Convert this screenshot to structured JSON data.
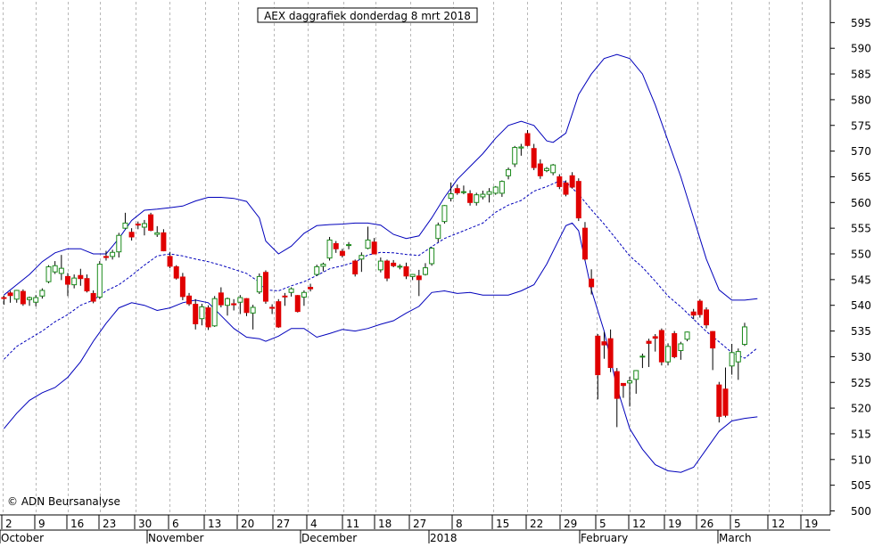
{
  "chart_data": {
    "type": "candlestick",
    "title": "AEX daggrafiek donderdag 8 mrt 2018",
    "credit": "© ADN Beursanalyse",
    "ylim": [
      500,
      598
    ],
    "y_ticks": [
      500,
      505,
      510,
      515,
      520,
      525,
      530,
      535,
      540,
      545,
      550,
      555,
      560,
      565,
      570,
      575,
      580,
      585,
      590,
      595
    ],
    "grid": "vertical dashed",
    "x_ticks": [
      "2",
      "9",
      "16",
      "23",
      "30",
      "6",
      "13",
      "20",
      "27",
      "4",
      "11",
      "18",
      "27",
      "8",
      "15",
      "22",
      "29",
      "5",
      "12",
      "19",
      "26",
      "5",
      "12",
      "19"
    ],
    "months": [
      "October",
      "November",
      "December",
      "2018",
      "February",
      "March"
    ],
    "colors": {
      "up": "#1a8a1a",
      "down": "#e00000",
      "band": "#0000bb",
      "average": "#0000bb"
    },
    "candles": [
      [
        541.5,
        541.9,
        540.1,
        541.4
      ],
      [
        542.4,
        542.8,
        540.5,
        541.9
      ],
      [
        541.2,
        543.0,
        540.5,
        542.9
      ],
      [
        542.7,
        543.1,
        539.9,
        540.3
      ],
      [
        541.1,
        541.7,
        539.9,
        541.5
      ],
      [
        540.6,
        542.0,
        539.8,
        541.5
      ],
      [
        541.8,
        543.3,
        541.3,
        542.9
      ],
      [
        544.6,
        547.8,
        544.3,
        547.5
      ],
      [
        546.5,
        548.6,
        546.1,
        547.7
      ],
      [
        546.2,
        549.8,
        544.9,
        547.2
      ],
      [
        545.6,
        546.3,
        541.8,
        544.1
      ],
      [
        544.0,
        546.0,
        543.3,
        545.3
      ],
      [
        545.8,
        547.1,
        543.8,
        545.2
      ],
      [
        545.2,
        546.0,
        542.5,
        542.8
      ],
      [
        542.3,
        542.9,
        540.4,
        540.8
      ],
      [
        541.6,
        548.6,
        541.2,
        548.0
      ],
      [
        549.5,
        550.6,
        548.7,
        549.3
      ],
      [
        549.5,
        550.8,
        548.9,
        550.3
      ],
      [
        550.4,
        554.1,
        549.3,
        553.6
      ],
      [
        555.0,
        558.0,
        554.8,
        556.0
      ],
      [
        554.2,
        555.0,
        552.6,
        553.3
      ],
      [
        555.8,
        556.3,
        554.8,
        555.6
      ],
      [
        555.2,
        556.6,
        553.6,
        555.9
      ],
      [
        557.6,
        558.0,
        554.4,
        554.6
      ],
      [
        553.8,
        555.4,
        553.3,
        554.1
      ],
      [
        554.1,
        554.8,
        550.5,
        550.6
      ],
      [
        549.5,
        550.4,
        547.2,
        547.6
      ],
      [
        547.5,
        547.8,
        545.0,
        545.3
      ],
      [
        545.5,
        546.3,
        541.0,
        541.7
      ],
      [
        541.8,
        542.4,
        539.9,
        540.3
      ],
      [
        540.2,
        541.2,
        535.3,
        536.4
      ],
      [
        537.4,
        540.3,
        536.1,
        539.7
      ],
      [
        539.5,
        540.0,
        535.2,
        535.8
      ],
      [
        536.0,
        541.8,
        535.8,
        541.3
      ],
      [
        542.4,
        543.5,
        539.6,
        540.1
      ],
      [
        540.0,
        541.5,
        538.0,
        541.3
      ],
      [
        540.3,
        541.2,
        539.0,
        540.1
      ],
      [
        540.6,
        542.0,
        538.3,
        541.5
      ],
      [
        541.3,
        541.4,
        537.9,
        538.6
      ],
      [
        538.5,
        540.1,
        535.3,
        539.6
      ],
      [
        542.6,
        546.2,
        542.2,
        545.6
      ],
      [
        546.4,
        546.8,
        540.3,
        540.8
      ],
      [
        539.6,
        540.2,
        538.3,
        539.5
      ],
      [
        540.7,
        541.2,
        535.6,
        535.8
      ],
      [
        541.8,
        542.4,
        539.9,
        541.7
      ],
      [
        542.5,
        543.5,
        541.7,
        543.2
      ],
      [
        541.9,
        542.0,
        538.6,
        538.8
      ],
      [
        541.6,
        542.9,
        539.9,
        542.5
      ],
      [
        543.5,
        544.2,
        542.7,
        543.2
      ],
      [
        546.0,
        547.9,
        545.7,
        547.5
      ],
      [
        547.6,
        548.3,
        546.6,
        548.0
      ],
      [
        549.2,
        553.3,
        548.7,
        552.7
      ],
      [
        552.0,
        552.5,
        550.2,
        551.0
      ],
      [
        550.5,
        551.0,
        549.3,
        549.7
      ],
      [
        551.7,
        552.3,
        550.9,
        551.8
      ],
      [
        548.6,
        548.9,
        545.6,
        546.1
      ],
      [
        549.0,
        550.3,
        546.5,
        549.7
      ],
      [
        551.1,
        555.3,
        550.9,
        552.7
      ],
      [
        552.3,
        553.1,
        549.9,
        550.0
      ],
      [
        546.9,
        549.3,
        546.4,
        548.6
      ],
      [
        548.6,
        548.9,
        544.7,
        545.3
      ],
      [
        548.2,
        548.8,
        547.4,
        547.7
      ],
      [
        547.5,
        548.0,
        547.0,
        547.6
      ],
      [
        547.5,
        548.3,
        545.1,
        545.7
      ],
      [
        545.6,
        546.1,
        544.9,
        546.0
      ],
      [
        545.7,
        546.9,
        541.8,
        545.0
      ],
      [
        546.0,
        548.2,
        545.8,
        547.3
      ],
      [
        548.1,
        551.3,
        547.7,
        551.1
      ],
      [
        553.0,
        556.1,
        552.3,
        555.6
      ],
      [
        556.3,
        559.5,
        555.9,
        559.4
      ],
      [
        560.8,
        563.9,
        560.2,
        561.7
      ],
      [
        562.7,
        563.5,
        561.5,
        561.9
      ],
      [
        562.0,
        563.3,
        561.6,
        562.1
      ],
      [
        561.7,
        562.4,
        559.4,
        560.0
      ],
      [
        560.0,
        561.9,
        559.4,
        561.5
      ],
      [
        561.1,
        562.3,
        560.6,
        561.6
      ],
      [
        561.6,
        562.8,
        560.0,
        562.1
      ],
      [
        561.8,
        563.2,
        561.5,
        563.0
      ],
      [
        561.8,
        564.3,
        561.1,
        564.1
      ],
      [
        565.2,
        566.8,
        564.5,
        566.4
      ],
      [
        567.5,
        571.0,
        566.9,
        570.7
      ],
      [
        570.6,
        571.4,
        569.1,
        570.8
      ],
      [
        573.4,
        574.1,
        570.9,
        571.1
      ],
      [
        570.5,
        571.4,
        566.3,
        566.8
      ],
      [
        567.5,
        568.4,
        564.6,
        565.2
      ],
      [
        566.2,
        566.9,
        565.9,
        566.6
      ],
      [
        565.8,
        567.5,
        565.3,
        567.3
      ],
      [
        565.0,
        565.5,
        562.6,
        563.1
      ],
      [
        563.8,
        564.3,
        561.2,
        561.6
      ],
      [
        565.2,
        565.9,
        562.7,
        563.0
      ],
      [
        564.1,
        564.7,
        556.4,
        557.0
      ],
      [
        555.0,
        556.2,
        548.7,
        549.0
      ],
      [
        545.1,
        547.0,
        542.1,
        543.6
      ],
      [
        534.0,
        534.4,
        521.7,
        526.5
      ],
      [
        532.9,
        534.8,
        529.6,
        532.3
      ],
      [
        533.5,
        535.3,
        527.0,
        527.9
      ],
      [
        527.1,
        527.8,
        516.3,
        521.9
      ],
      [
        524.8,
        524.7,
        522.0,
        524.4
      ],
      [
        524.9,
        526.1,
        520.3,
        525.3
      ],
      [
        525.6,
        527.4,
        522.8,
        527.3
      ],
      [
        530.0,
        530.6,
        527.8,
        530.1
      ],
      [
        533.0,
        533.5,
        528.0,
        532.6
      ],
      [
        533.9,
        534.4,
        531.0,
        533.6
      ],
      [
        535.1,
        535.5,
        528.3,
        529.0
      ],
      [
        529.0,
        532.6,
        528.3,
        532.0
      ],
      [
        534.5,
        535.0,
        529.7,
        530.0
      ],
      [
        531.2,
        532.9,
        529.4,
        532.5
      ],
      [
        533.4,
        534.9,
        533.0,
        534.8
      ],
      [
        538.7,
        539.3,
        537.3,
        538.1
      ],
      [
        540.8,
        541.2,
        537.6,
        538.2
      ],
      [
        539.1,
        539.6,
        535.5,
        536.2
      ],
      [
        534.9,
        535.0,
        527.4,
        531.7
      ],
      [
        524.5,
        525.1,
        517.2,
        518.4
      ],
      [
        523.7,
        527.9,
        518.2,
        518.6
      ],
      [
        528.2,
        532.5,
        526.5,
        530.8
      ],
      [
        529.0,
        531.6,
        525.5,
        531.0
      ],
      [
        532.4,
        536.6,
        532.1,
        535.8
      ]
    ],
    "sma": [
      [
        0,
        529.5
      ],
      [
        2,
        532.0
      ],
      [
        4,
        533.5
      ],
      [
        6,
        535.0
      ],
      [
        8,
        536.8
      ],
      [
        10,
        538.2
      ],
      [
        12,
        540.0
      ],
      [
        14,
        541.0
      ],
      [
        16,
        542.8
      ],
      [
        18,
        544.0
      ],
      [
        20,
        545.8
      ],
      [
        22,
        547.8
      ],
      [
        24,
        549.6
      ],
      [
        26,
        550.0
      ],
      [
        28,
        549.6
      ],
      [
        30,
        549.0
      ],
      [
        32,
        548.5
      ],
      [
        34,
        547.8
      ],
      [
        36,
        547.0
      ],
      [
        38,
        546.2
      ],
      [
        40,
        544.5
      ],
      [
        41,
        543.0
      ],
      [
        43,
        542.8
      ],
      [
        45,
        543.8
      ],
      [
        47,
        544.6
      ],
      [
        49,
        545.8
      ],
      [
        51,
        547.1
      ],
      [
        53,
        547.7
      ],
      [
        55,
        548.4
      ],
      [
        57,
        549.8
      ],
      [
        59,
        550.3
      ],
      [
        61,
        550.2
      ],
      [
        63,
        549.9
      ],
      [
        65,
        549.7
      ],
      [
        67,
        551.4
      ],
      [
        69,
        553.0
      ],
      [
        71,
        554.0
      ],
      [
        73,
        555.0
      ],
      [
        75,
        556.0
      ],
      [
        77,
        558.1
      ],
      [
        79,
        559.5
      ],
      [
        81,
        560.4
      ],
      [
        83,
        562.2
      ],
      [
        85,
        563.1
      ],
      [
        87,
        564.2
      ],
      [
        88,
        564.0
      ],
      [
        90,
        561.6
      ],
      [
        92,
        558.6
      ],
      [
        94,
        555.8
      ],
      [
        96,
        552.7
      ],
      [
        98,
        549.6
      ],
      [
        100,
        547.4
      ],
      [
        102,
        544.7
      ],
      [
        104,
        541.8
      ],
      [
        106,
        539.7
      ],
      [
        108,
        537.3
      ],
      [
        110,
        534.9
      ],
      [
        112,
        532.9
      ],
      [
        114,
        530.8
      ],
      [
        116,
        529.7
      ],
      [
        118,
        531.7
      ]
    ],
    "upper_band": [
      [
        0,
        542.0
      ],
      [
        2,
        544.0
      ],
      [
        4,
        546.0
      ],
      [
        6,
        548.5
      ],
      [
        8,
        550.2
      ],
      [
        10,
        551.0
      ],
      [
        12,
        551.0
      ],
      [
        14,
        550.0
      ],
      [
        16,
        550.0
      ],
      [
        18,
        553.0
      ],
      [
        20,
        556.5
      ],
      [
        22,
        558.5
      ],
      [
        24,
        558.7
      ],
      [
        26,
        559.0
      ],
      [
        28,
        559.3
      ],
      [
        30,
        560.3
      ],
      [
        32,
        561.0
      ],
      [
        34,
        561.0
      ],
      [
        36,
        560.8
      ],
      [
        38,
        560.2
      ],
      [
        40,
        557.0
      ],
      [
        41,
        552.5
      ],
      [
        43,
        550.0
      ],
      [
        45,
        551.5
      ],
      [
        47,
        554.0
      ],
      [
        49,
        555.5
      ],
      [
        51,
        555.7
      ],
      [
        53,
        555.8
      ],
      [
        55,
        556.0
      ],
      [
        57,
        556.0
      ],
      [
        59,
        555.6
      ],
      [
        61,
        553.8
      ],
      [
        63,
        553.0
      ],
      [
        65,
        553.5
      ],
      [
        67,
        557.0
      ],
      [
        69,
        561.0
      ],
      [
        71,
        564.5
      ],
      [
        73,
        567.0
      ],
      [
        75,
        569.5
      ],
      [
        77,
        572.5
      ],
      [
        79,
        575.0
      ],
      [
        81,
        575.8
      ],
      [
        83,
        575.0
      ],
      [
        85,
        572.0
      ],
      [
        86,
        571.7
      ],
      [
        88,
        573.5
      ],
      [
        90,
        581.0
      ],
      [
        92,
        585.0
      ],
      [
        94,
        588.0
      ],
      [
        96,
        588.8
      ],
      [
        98,
        588.0
      ],
      [
        100,
        585.0
      ],
      [
        102,
        579.0
      ],
      [
        104,
        572.0
      ],
      [
        106,
        565.0
      ],
      [
        108,
        557.0
      ],
      [
        110,
        549.0
      ],
      [
        112,
        543.0
      ],
      [
        114,
        541.0
      ],
      [
        116,
        541.0
      ],
      [
        118,
        541.3
      ]
    ],
    "lower_band": [
      [
        0,
        516.0
      ],
      [
        2,
        519.0
      ],
      [
        4,
        521.5
      ],
      [
        6,
        523.0
      ],
      [
        8,
        524.0
      ],
      [
        10,
        526.0
      ],
      [
        12,
        529.0
      ],
      [
        14,
        533.0
      ],
      [
        16,
        536.5
      ],
      [
        18,
        539.5
      ],
      [
        20,
        540.5
      ],
      [
        22,
        540.0
      ],
      [
        24,
        539.0
      ],
      [
        26,
        539.5
      ],
      [
        28,
        540.5
      ],
      [
        30,
        541.0
      ],
      [
        32,
        540.5
      ],
      [
        34,
        538.0
      ],
      [
        36,
        535.5
      ],
      [
        38,
        533.8
      ],
      [
        40,
        533.5
      ],
      [
        41,
        533.0
      ],
      [
        43,
        534.0
      ],
      [
        45,
        535.5
      ],
      [
        47,
        535.5
      ],
      [
        49,
        533.8
      ],
      [
        51,
        534.5
      ],
      [
        53,
        535.3
      ],
      [
        55,
        535.0
      ],
      [
        57,
        535.5
      ],
      [
        59,
        536.3
      ],
      [
        61,
        537.0
      ],
      [
        63,
        538.5
      ],
      [
        65,
        539.8
      ],
      [
        67,
        542.5
      ],
      [
        69,
        542.8
      ],
      [
        71,
        542.3
      ],
      [
        73,
        542.5
      ],
      [
        75,
        542.0
      ],
      [
        77,
        542.0
      ],
      [
        79,
        542.0
      ],
      [
        81,
        542.8
      ],
      [
        83,
        544.0
      ],
      [
        85,
        548.0
      ],
      [
        87,
        553.0
      ],
      [
        88,
        555.5
      ],
      [
        89,
        556.0
      ],
      [
        90,
        554.5
      ],
      [
        92,
        543.0
      ],
      [
        94,
        535.0
      ],
      [
        96,
        524.0
      ],
      [
        98,
        516.0
      ],
      [
        100,
        512.0
      ],
      [
        102,
        509.0
      ],
      [
        104,
        507.8
      ],
      [
        106,
        507.5
      ],
      [
        108,
        508.5
      ],
      [
        110,
        512.0
      ],
      [
        112,
        515.5
      ],
      [
        114,
        517.5
      ],
      [
        116,
        518.0
      ],
      [
        118,
        518.3
      ]
    ]
  }
}
